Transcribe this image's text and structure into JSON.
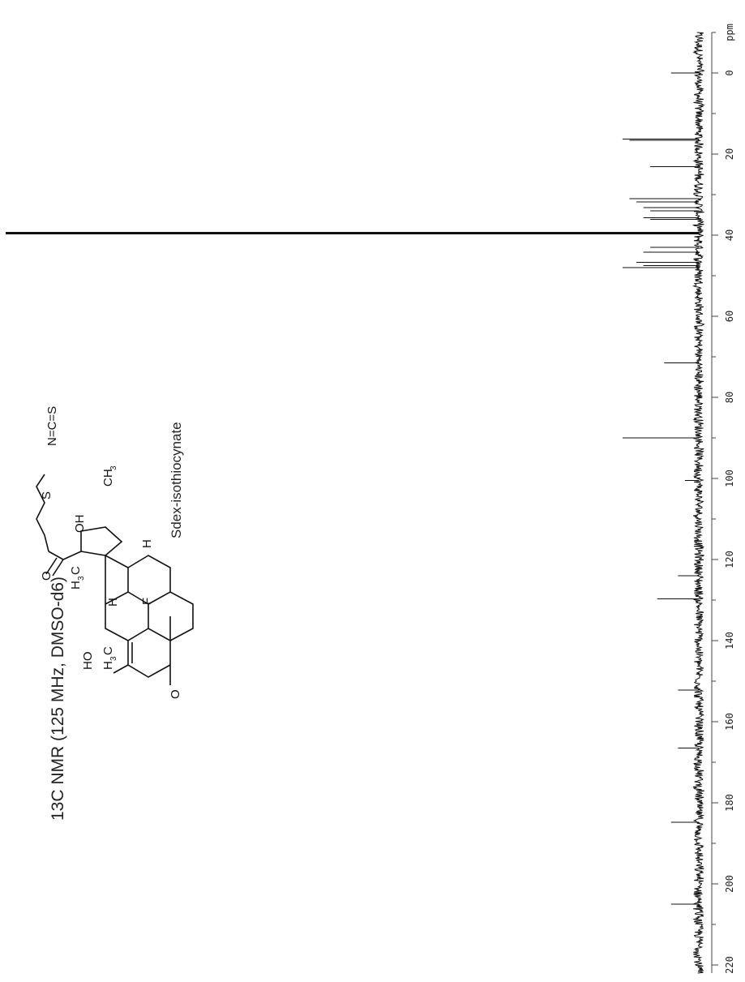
{
  "chart_data": {
    "type": "line",
    "title": "13C NMR (125 MHz, DMSO-d6)",
    "compound_name": "Sdex-isothiocynate",
    "xlabel": "ppm",
    "ylabel": "",
    "xlim": [
      -10,
      222
    ],
    "x_ticks": [
      0,
      20,
      40,
      60,
      80,
      100,
      120,
      140,
      160,
      180,
      200,
      220
    ],
    "x_tick_labels": [
      "0",
      "20",
      "40",
      "60",
      "80",
      "100",
      "120",
      "140",
      "160",
      "180",
      "200",
      "220"
    ],
    "peaks": [
      {
        "ppm": 0.0,
        "intensity": 0.04
      },
      {
        "ppm": 16.3,
        "intensity": 0.11
      },
      {
        "ppm": 16.6,
        "intensity": 0.1
      },
      {
        "ppm": 23.1,
        "intensity": 0.07
      },
      {
        "ppm": 31.0,
        "intensity": 0.1
      },
      {
        "ppm": 31.8,
        "intensity": 0.09
      },
      {
        "ppm": 33.2,
        "intensity": 0.08
      },
      {
        "ppm": 34.0,
        "intensity": 0.07
      },
      {
        "ppm": 35.7,
        "intensity": 0.08
      },
      {
        "ppm": 36.1,
        "intensity": 0.07
      },
      {
        "ppm": 39.5,
        "intensity": 1.0
      },
      {
        "ppm": 43.0,
        "intensity": 0.07
      },
      {
        "ppm": 44.2,
        "intensity": 0.08
      },
      {
        "ppm": 46.7,
        "intensity": 0.09
      },
      {
        "ppm": 47.5,
        "intensity": 0.08
      },
      {
        "ppm": 48.0,
        "intensity": 0.11
      },
      {
        "ppm": 71.5,
        "intensity": 0.05
      },
      {
        "ppm": 90.0,
        "intensity": 0.11
      },
      {
        "ppm": 100.5,
        "intensity": 0.02
      },
      {
        "ppm": 124.0,
        "intensity": 0.03
      },
      {
        "ppm": 129.7,
        "intensity": 0.06
      },
      {
        "ppm": 152.2,
        "intensity": 0.03
      },
      {
        "ppm": 166.5,
        "intensity": 0.03
      },
      {
        "ppm": 184.8,
        "intensity": 0.04
      },
      {
        "ppm": 205.0,
        "intensity": 0.04
      }
    ],
    "grid": false,
    "legend": "none"
  },
  "structure_labels": {
    "ketone_o": "O",
    "ho": "HO",
    "h3c_a": "H",
    "h3c_b": "H",
    "sub_3": "3",
    "c": "C",
    "h_a": "H",
    "h_b": "H",
    "f": "F",
    "o_chain": "O",
    "oh": "OH",
    "ch3": "CH",
    "s": "S",
    "ncs": "N=C=S"
  }
}
